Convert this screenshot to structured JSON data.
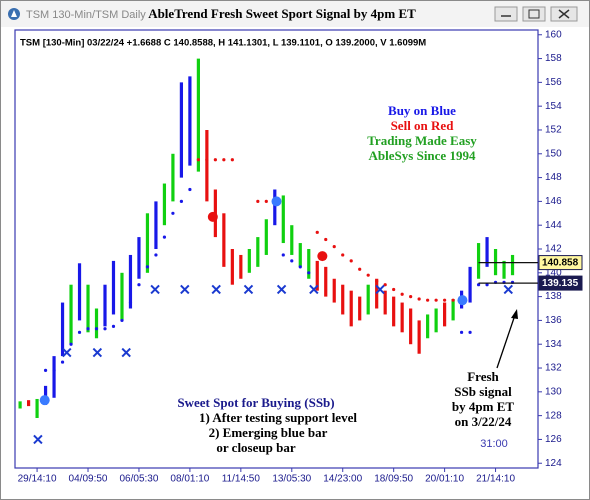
{
  "window": {
    "title": "TSM 130-Min/TSM Daily"
  },
  "chart_data": {
    "type": "price-bars",
    "title": "AbleTrend Fresh Sweet Sport Signal by 4pm ET",
    "subtitle": "TSM [130-Min] 03/22/24 +1.6688 C 140.8588, H 141.1301, L 139.1101, O 139.2000, V 1.6099M",
    "annotations": [
      "Buy on Blue",
      "Sell on Red",
      "Trading Made Easy",
      "AbleSys Since 1994",
      "Sweet Spot for Buying (SSb)",
      "1) After testing support level",
      "2) Emerging blue bar",
      "or closeup bar",
      "Fresh",
      "SSb signal",
      "by 4pm ET",
      "on 3/22/24",
      "31:00"
    ],
    "trend_colors": {
      "b": "#1818e8",
      "g": "#10d010",
      "r": "#e81010"
    },
    "trend": [
      "g",
      "r",
      "g",
      "b",
      "b",
      "b",
      "g",
      "b",
      "g",
      "g",
      "b",
      "b",
      "g",
      "b",
      "b",
      "g",
      "b",
      "g",
      "g",
      "b",
      "b",
      "g",
      "r",
      "r",
      "r",
      "r",
      "r",
      "g",
      "g",
      "g",
      "b",
      "g",
      "g",
      "g",
      "g",
      "r",
      "r",
      "r",
      "r",
      "r",
      "r",
      "g",
      "r",
      "r",
      "r",
      "r",
      "r",
      "r",
      "g",
      "g",
      "r",
      "g",
      "b",
      "b",
      "g",
      "b",
      "g",
      "g",
      "g"
    ],
    "high": [
      129.2,
      129.3,
      129.4,
      130.5,
      133,
      137.5,
      139,
      140.8,
      139,
      137,
      139,
      141,
      140,
      141.5,
      143,
      145,
      146,
      147.5,
      150,
      156,
      156.5,
      158,
      152,
      147,
      145,
      142,
      141.5,
      142,
      143,
      144.5,
      147,
      146.5,
      144,
      142.5,
      142,
      141,
      140.5,
      139.5,
      139,
      138.5,
      138,
      139,
      139.5,
      138.5,
      138,
      137.5,
      137,
      136,
      136.5,
      137,
      137.5,
      137.8,
      138.5,
      140.5,
      142.5,
      143,
      142,
      141,
      141.5
    ],
    "low": [
      128.6,
      128.8,
      127.8,
      128.9,
      129.5,
      133,
      134,
      136,
      135,
      134.5,
      135.5,
      136.5,
      136,
      137,
      139.5,
      140,
      142,
      144,
      146,
      148,
      149,
      148.5,
      146,
      143,
      140.5,
      139,
      139.5,
      140,
      140.5,
      141.5,
      144,
      142.5,
      141.5,
      140.5,
      139.5,
      138.5,
      138,
      137.5,
      136.5,
      135.5,
      136,
      136.5,
      137,
      136.5,
      135.5,
      135,
      134,
      133.2,
      134.5,
      135,
      135.5,
      136,
      137,
      137.5,
      139.5,
      140.5,
      139.8,
      139.5,
      139.8
    ],
    "buy_stop": [
      null,
      null,
      null,
      131.8,
      131.8,
      132.5,
      134,
      135,
      135.3,
      135.3,
      135.3,
      135.5,
      136,
      137.5,
      139,
      140.5,
      141.5,
      143,
      145,
      146,
      147,
      null,
      null,
      null,
      null,
      null,
      null,
      null,
      null,
      null,
      null,
      141.5,
      141,
      140.5,
      140,
      null,
      null,
      null,
      null,
      null,
      null,
      null,
      null,
      null,
      null,
      null,
      null,
      null,
      null,
      null,
      null,
      null,
      135,
      135,
      139,
      139,
      139.2,
      139.2,
      139.2
    ],
    "sell_stop": [
      null,
      null,
      null,
      null,
      null,
      null,
      null,
      null,
      null,
      null,
      null,
      null,
      null,
      null,
      null,
      null,
      null,
      null,
      null,
      null,
      null,
      149.5,
      149.5,
      149.5,
      149.5,
      149.5,
      null,
      null,
      146,
      146,
      null,
      null,
      null,
      null,
      null,
      143.4,
      142.8,
      142.2,
      141.5,
      141,
      140.3,
      139.8,
      139.3,
      139,
      138.6,
      138.2,
      138,
      137.8,
      137.7,
      137.7,
      137.7,
      137.7,
      null,
      null,
      null,
      null,
      null,
      null,
      null
    ],
    "signals": [
      {
        "x": 2.9,
        "value": 129.3,
        "color": "#3a7bff"
      },
      {
        "x": 22.7,
        "value": 144.7,
        "color": "#e81010"
      },
      {
        "x": 30.2,
        "value": 146,
        "color": "#3a7bff"
      },
      {
        "x": 35.6,
        "value": 141.4,
        "color": "#e81010"
      },
      {
        "x": 52.1,
        "value": 137.7,
        "color": "#3a7bff"
      }
    ],
    "ssb": {
      "x": [
        2.1,
        5.5,
        9.1,
        12.5,
        15.9,
        19.4,
        23.1,
        26.9,
        30.8,
        34.6,
        42.4,
        57.5
      ],
      "values": [
        126,
        133.3,
        133.3,
        133.3,
        138.6,
        138.6,
        138.6,
        138.6,
        138.6,
        138.6,
        138.6,
        138.6
      ]
    },
    "last_price_tags": [
      140.858,
      139.135
    ],
    "xlim": [
      -0.6,
      61
    ],
    "xticks": [
      {
        "value": 2,
        "label": "29/14:10"
      },
      {
        "value": 8,
        "label": "04/09:50"
      },
      {
        "value": 14,
        "label": "06/05:30"
      },
      {
        "value": 20,
        "label": "08/01:10"
      },
      {
        "value": 26,
        "label": "11/14:50"
      },
      {
        "value": 32,
        "label": "13/05:30"
      },
      {
        "value": 38,
        "label": "14/23:00"
      },
      {
        "value": 44,
        "label": "18/09:50"
      },
      {
        "value": 50,
        "label": "20/01:10"
      },
      {
        "value": 56,
        "label": "21/14:10"
      }
    ],
    "ylim": [
      123.6,
      160.4
    ],
    "yticks": [
      124,
      126,
      128,
      130,
      132,
      134,
      136,
      138,
      140,
      142,
      144,
      146,
      148,
      150,
      152,
      154,
      156,
      158,
      160
    ]
  }
}
